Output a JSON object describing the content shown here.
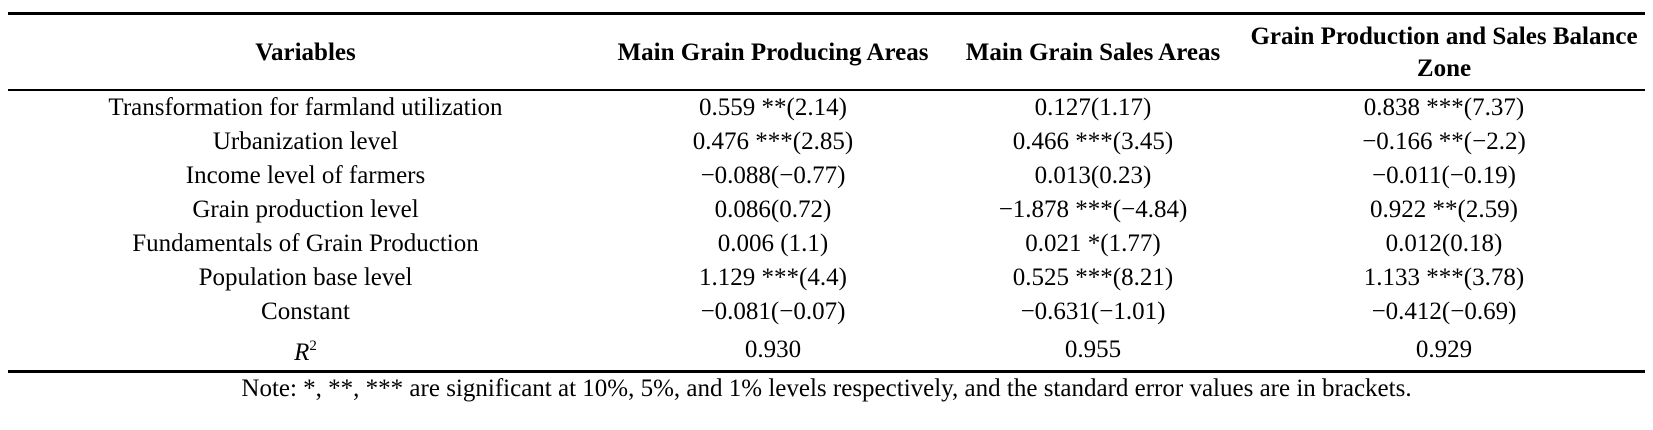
{
  "table": {
    "headers": [
      "Variables",
      "Main Grain Producing Areas",
      "Main Grain Sales Areas",
      "Grain Production and Sales Balance Zone"
    ],
    "rows": [
      [
        "Transformation for farmland utilization",
        "0.559 **(2.14)",
        "0.127(1.17)",
        "0.838 ***(7.37)"
      ],
      [
        "Urbanization level",
        "0.476 ***(2.85)",
        "0.466 ***(3.45)",
        "−0.166 **(−2.2)"
      ],
      [
        "Income level of farmers",
        "−0.088(−0.77)",
        "0.013(0.23)",
        "−0.011(−0.19)"
      ],
      [
        "Grain production level",
        "0.086(0.72)",
        "−1.878 ***(−4.84)",
        "0.922 **(2.59)"
      ],
      [
        "Fundamentals of Grain Production",
        "0.006 (1.1)",
        "0.021 *(1.77)",
        "0.012(0.18)"
      ],
      [
        "Population base level",
        "1.129 ***(4.4)",
        "0.525 ***(8.21)",
        "1.133 ***(3.78)"
      ],
      [
        "Constant",
        "−0.081(−0.07)",
        "−0.631(−1.01)",
        "−0.412(−0.69)"
      ]
    ],
    "r_squared": {
      "label_base": "R",
      "label_sup": "2",
      "values": [
        "0.930",
        "0.955",
        "0.929"
      ]
    }
  },
  "note": "Note: *, **, *** are significant at 10%, 5%, and 1% levels respectively, and the standard error values are in brackets."
}
